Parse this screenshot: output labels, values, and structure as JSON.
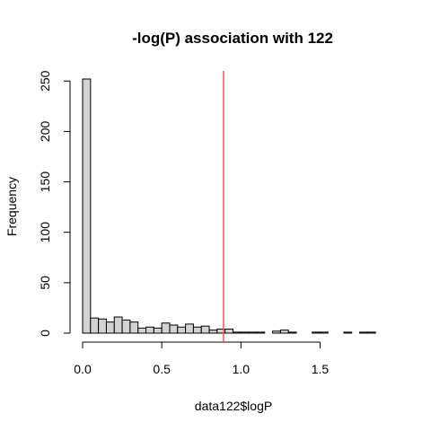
{
  "chart_data": {
    "type": "bar",
    "subtype": "histogram",
    "title": "-log(P) association with 122",
    "xlabel": "data122$logP",
    "ylabel": "Frequency",
    "bin_width": 0.05,
    "bin_start": 0,
    "counts": [
      252,
      15,
      14,
      11,
      16,
      13,
      11,
      5,
      6,
      5,
      10,
      8,
      6,
      9,
      6,
      7,
      3,
      4,
      4,
      1,
      1,
      1,
      1,
      0,
      2,
      3,
      1,
      0,
      0,
      1,
      1,
      0,
      0,
      1,
      0,
      1,
      1
    ],
    "xlim": [
      0,
      1.9
    ],
    "ylim": [
      0,
      260
    ],
    "x_ticks": [
      0,
      0.5,
      1,
      1.5
    ],
    "x_tick_labels": [
      "0.0",
      "0.5",
      "1.0",
      "1.5"
    ],
    "y_ticks": [
      0,
      50,
      100,
      150,
      200,
      250
    ],
    "y_tick_labels": [
      "0",
      "50",
      "100",
      "150",
      "200",
      "250"
    ],
    "vertical_line": {
      "x": 0.89,
      "color": "#f05050"
    },
    "bar_color": "#d3d3d3",
    "grid": false
  }
}
